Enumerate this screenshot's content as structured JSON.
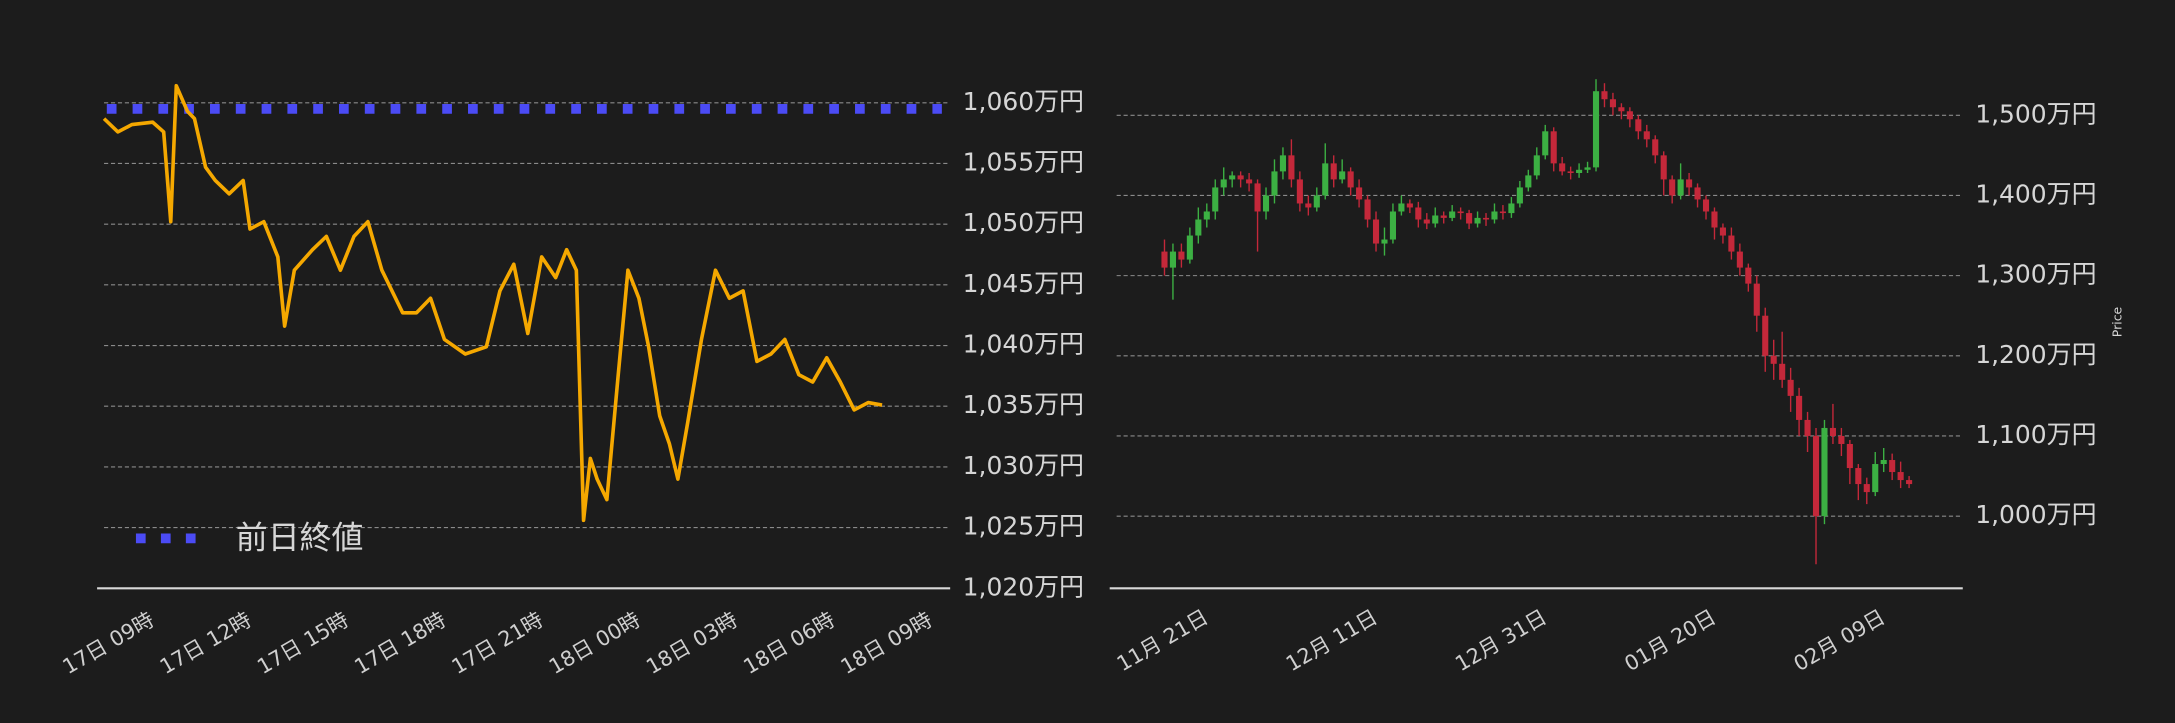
{
  "chart_data": [
    {
      "type": "line",
      "x": [
        -1.5,
        -1.07,
        -0.64,
        0,
        0.34,
        0.56,
        0.73,
        1.07,
        1.29,
        1.63,
        1.93,
        2.36,
        2.79,
        3.0,
        3.43,
        3.86,
        4.07,
        4.37,
        4.93,
        5.36,
        5.79,
        6.21,
        6.64,
        7.07,
        7.71,
        8.14,
        8.57,
        9.0,
        9.64,
        10.29,
        10.71,
        11.14,
        11.57,
        12.0,
        12.43,
        12.77,
        13.07,
        13.29,
        13.5,
        13.71,
        14.01,
        14.36,
        14.66,
        15.0,
        15.3,
        15.64,
        15.94,
        16.2,
        16.5,
        16.93,
        17.36,
        17.79,
        18.21,
        18.64,
        19.07,
        19.5,
        19.93,
        20.36,
        20.79,
        21.21,
        21.64,
        22.07,
        22.5
      ],
      "values": [
        1058.7,
        1057.6,
        1058.2,
        1058.4,
        1057.6,
        1050.2,
        1061.4,
        1059.3,
        1058.7,
        1054.7,
        1053.6,
        1052.5,
        1053.6,
        1049.6,
        1050.2,
        1047.3,
        1041.6,
        1046.2,
        1047.9,
        1049.0,
        1046.2,
        1049.0,
        1050.2,
        1046.2,
        1042.7,
        1042.7,
        1043.9,
        1040.5,
        1039.3,
        1039.9,
        1044.5,
        1046.7,
        1041.0,
        1047.3,
        1045.6,
        1047.9,
        1046.2,
        1025.6,
        1030.7,
        1029.0,
        1027.3,
        1037.6,
        1046.2,
        1043.9,
        1039.9,
        1034.2,
        1031.9,
        1029.0,
        1033.6,
        1040.5,
        1046.2,
        1043.9,
        1044.5,
        1038.7,
        1039.3,
        1040.5,
        1037.6,
        1037.0,
        1039.0,
        1037.0,
        1034.7,
        1035.3,
        1035.1
      ],
      "color": "#f5a800",
      "reference_line": {
        "name": "前日終値",
        "value": 1059.5,
        "color": "#4b4bf5"
      },
      "xlim": [
        -1.5,
        24.6
      ],
      "xticks": [
        {
          "value": 0,
          "label": "17日 09時"
        },
        {
          "value": 3,
          "label": "17日 12時"
        },
        {
          "value": 6,
          "label": "17日 15時"
        },
        {
          "value": 9,
          "label": "17日 18時"
        },
        {
          "value": 12,
          "label": "17日 21時"
        },
        {
          "value": 15,
          "label": "18日 00時"
        },
        {
          "value": 18,
          "label": "18日 03時"
        },
        {
          "value": 21,
          "label": "18日 06時"
        },
        {
          "value": 24,
          "label": "18日 09時"
        }
      ],
      "ylim": [
        1020,
        1062
      ],
      "yticks": [
        {
          "value": 1020,
          "label": "1,020万円"
        },
        {
          "value": 1025,
          "label": "1,025万円"
        },
        {
          "value": 1030,
          "label": "1,030万円"
        },
        {
          "value": 1035,
          "label": "1,035万円"
        },
        {
          "value": 1040,
          "label": "1,040万円"
        },
        {
          "value": 1045,
          "label": "1,045万円"
        },
        {
          "value": 1050,
          "label": "1,050万円"
        },
        {
          "value": 1055,
          "label": "1,055万円"
        },
        {
          "value": 1060,
          "label": "1,060万円"
        }
      ],
      "grid": true
    },
    {
      "type": "candlestick",
      "y_label": "Price",
      "x": [
        "11月 16日",
        "11月 17日",
        "11月 18日",
        "11月 19日",
        "11月 20日",
        "11月 21日",
        "11月 22日",
        "11月 23日",
        "11月 24日",
        "11月 25日",
        "11月 26日",
        "11月 27日",
        "11月 28日",
        "11月 29日",
        "11月 30日",
        "12月 01日",
        "12月 02日",
        "12月 03日",
        "12月 04日",
        "12月 05日",
        "12月 06日",
        "12月 07日",
        "12月 08日",
        "12月 09日",
        "12月 10日",
        "12月 11日",
        "12月 12日",
        "12月 13日",
        "12月 14日",
        "12月 15日",
        "12月 16日",
        "12月 17日",
        "12月 18日",
        "12月 19日",
        "12月 20日",
        "12月 21日",
        "12月 22日",
        "12月 23日",
        "12月 24日",
        "12月 25日",
        "12月 26日",
        "12月 27日",
        "12月 28日",
        "12月 29日",
        "12月 30日",
        "12月 31日",
        "01月 01日",
        "01月 02日",
        "01月 03日",
        "01月 04日",
        "01月 05日",
        "01月 06日",
        "01月 07日",
        "01月 08日",
        "01月 09日",
        "01月 10日",
        "01月 11日",
        "01月 12日",
        "01月 13日",
        "01月 14日",
        "01月 15日",
        "01月 16日",
        "01月 17日",
        "01月 18日",
        "01月 19日",
        "01月 20日",
        "01月 21日",
        "01月 22日",
        "01月 23日",
        "01月 24日",
        "01月 25日",
        "01月 26日",
        "01月 27日",
        "01月 28日",
        "01月 29日",
        "01月 30日",
        "01月 31日",
        "02月 01日",
        "02月 02日",
        "02月 03日",
        "02月 04日",
        "02月 05日",
        "02月 06日",
        "02月 07日",
        "02月 08日",
        "02月 09日",
        "02月 10日",
        "02月 11日",
        "02月 12日"
      ],
      "open": [
        1330,
        1310,
        1330,
        1320,
        1350,
        1370,
        1380,
        1410,
        1420,
        1425,
        1420,
        1415,
        1380,
        1400,
        1430,
        1450,
        1420,
        1390,
        1385,
        1400,
        1440,
        1420,
        1430,
        1410,
        1395,
        1370,
        1340,
        1345,
        1380,
        1390,
        1385,
        1370,
        1365,
        1375,
        1372,
        1380,
        1378,
        1365,
        1372,
        1370,
        1380,
        1378,
        1390,
        1410,
        1425,
        1450,
        1480,
        1440,
        1430,
        1428,
        1432,
        1435,
        1530,
        1520,
        1510,
        1505,
        1495,
        1480,
        1470,
        1450,
        1420,
        1400,
        1420,
        1410,
        1395,
        1380,
        1360,
        1350,
        1330,
        1310,
        1290,
        1250,
        1200,
        1190,
        1170,
        1150,
        1120,
        1100,
        1000,
        1110,
        1100,
        1090,
        1060,
        1040,
        1030,
        1065,
        1070,
        1055,
        1045
      ],
      "high": [
        1345,
        1340,
        1340,
        1360,
        1385,
        1390,
        1420,
        1435,
        1430,
        1430,
        1428,
        1420,
        1410,
        1445,
        1460,
        1470,
        1430,
        1400,
        1410,
        1465,
        1450,
        1445,
        1435,
        1420,
        1400,
        1380,
        1360,
        1390,
        1400,
        1395,
        1392,
        1378,
        1385,
        1380,
        1388,
        1385,
        1382,
        1380,
        1378,
        1390,
        1388,
        1398,
        1418,
        1432,
        1460,
        1488,
        1485,
        1448,
        1436,
        1440,
        1442,
        1545,
        1540,
        1528,
        1515,
        1510,
        1500,
        1488,
        1475,
        1455,
        1425,
        1440,
        1428,
        1415,
        1400,
        1385,
        1365,
        1360,
        1340,
        1315,
        1300,
        1260,
        1220,
        1230,
        1185,
        1160,
        1130,
        1110,
        1120,
        1140,
        1110,
        1095,
        1065,
        1048,
        1080,
        1085,
        1078,
        1068,
        1050
      ],
      "low": [
        1300,
        1270,
        1310,
        1315,
        1340,
        1360,
        1370,
        1400,
        1410,
        1410,
        1405,
        1330,
        1370,
        1390,
        1420,
        1410,
        1380,
        1375,
        1380,
        1395,
        1410,
        1415,
        1400,
        1385,
        1360,
        1330,
        1325,
        1340,
        1375,
        1378,
        1360,
        1358,
        1360,
        1365,
        1368,
        1370,
        1358,
        1360,
        1362,
        1365,
        1370,
        1372,
        1385,
        1405,
        1420,
        1445,
        1430,
        1425,
        1420,
        1422,
        1428,
        1430,
        1510,
        1500,
        1495,
        1485,
        1470,
        1460,
        1440,
        1400,
        1390,
        1395,
        1400,
        1385,
        1370,
        1345,
        1340,
        1320,
        1300,
        1280,
        1230,
        1180,
        1170,
        1160,
        1130,
        1100,
        1080,
        940,
        990,
        1090,
        1075,
        1040,
        1020,
        1015,
        1025,
        1055,
        1045,
        1035,
        1035
      ],
      "close": [
        1310,
        1330,
        1320,
        1350,
        1370,
        1380,
        1410,
        1420,
        1425,
        1420,
        1415,
        1380,
        1400,
        1430,
        1450,
        1420,
        1390,
        1385,
        1400,
        1440,
        1420,
        1430,
        1410,
        1395,
        1370,
        1340,
        1345,
        1380,
        1390,
        1385,
        1370,
        1365,
        1375,
        1372,
        1380,
        1378,
        1365,
        1372,
        1370,
        1380,
        1378,
        1390,
        1410,
        1425,
        1450,
        1480,
        1440,
        1430,
        1428,
        1432,
        1435,
        1530,
        1520,
        1510,
        1505,
        1495,
        1480,
        1470,
        1450,
        1420,
        1400,
        1420,
        1410,
        1395,
        1380,
        1360,
        1350,
        1330,
        1310,
        1290,
        1250,
        1200,
        1190,
        1170,
        1150,
        1120,
        1100,
        1000,
        1110,
        1100,
        1090,
        1060,
        1040,
        1030,
        1065,
        1070,
        1055,
        1045,
        1040
      ],
      "up_color": "#3cb043",
      "down_color": "#c4283a",
      "xticks": [
        "11月 21日",
        "12月 11日",
        "12月 31日",
        "01月 20日",
        "02月 09日"
      ],
      "ylim": [
        910,
        1555
      ],
      "yticks": [
        {
          "value": 1000,
          "label": "1,000万円"
        },
        {
          "value": 1100,
          "label": "1,100万円"
        },
        {
          "value": 1200,
          "label": "1,200万円"
        },
        {
          "value": 1300,
          "label": "1,300万円"
        },
        {
          "value": 1400,
          "label": "1,400万円"
        },
        {
          "value": 1500,
          "label": "1,500万円"
        }
      ],
      "grid": true
    }
  ]
}
